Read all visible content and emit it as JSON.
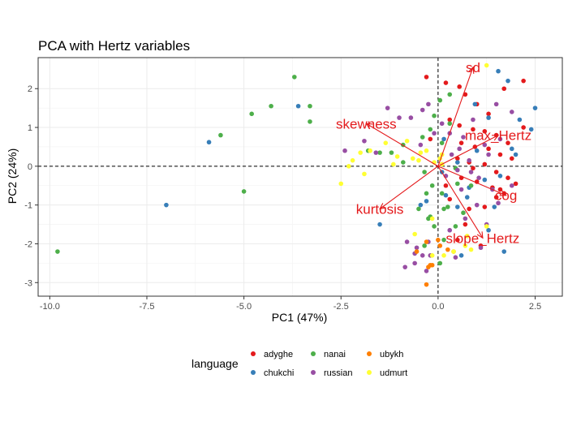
{
  "chart_data": {
    "type": "scatter",
    "title": "PCA with Hertz variables",
    "xlabel": "PC1 (47%)",
    "ylabel": "PC2 (24%)",
    "xlim": [
      -10.3,
      3.2
    ],
    "ylim": [
      -3.35,
      2.8
    ],
    "x_ticks": [
      -10.0,
      -7.5,
      -5.0,
      -2.5,
      0.0,
      2.5
    ],
    "x_tick_labels": [
      "-10.0",
      "-7.5",
      "-5.0",
      "-2.5",
      "0.0",
      "2.5"
    ],
    "y_ticks": [
      -3,
      -2,
      -1,
      0,
      1,
      2
    ],
    "y_tick_labels": [
      "-3",
      "-2",
      "-1",
      "0",
      "1",
      "2"
    ],
    "grid": true,
    "reference_lines": {
      "x": 0,
      "y": 0,
      "style": "dashed"
    },
    "legend": {
      "title": "language",
      "position": "bottom",
      "entries": [
        {
          "name": "adyghe",
          "color": "#e41a1c"
        },
        {
          "name": "chukchi",
          "color": "#377eb8"
        },
        {
          "name": "nanai",
          "color": "#4daf4a"
        },
        {
          "name": "russian",
          "color": "#984ea3"
        },
        {
          "name": "ubykh",
          "color": "#ff7f00"
        },
        {
          "name": "udmurt",
          "color": "#ffff33"
        }
      ]
    },
    "loadings": [
      {
        "name": "sd",
        "x": 0.9,
        "y": 2.55
      },
      {
        "name": "skewness",
        "x": -1.85,
        "y": 1.1
      },
      {
        "name": "max_Hertz",
        "x": 1.55,
        "y": 0.8
      },
      {
        "name": "kurtosis",
        "x": -1.5,
        "y": -1.1
      },
      {
        "name": "cog",
        "x": 1.75,
        "y": -0.75
      },
      {
        "name": "slope_Hertz",
        "x": 1.15,
        "y": -1.85
      }
    ],
    "arrow_color": "#e41a1c",
    "series": [
      {
        "name": "adyghe",
        "color": "#e41a1c",
        "points": [
          [
            -0.3,
            2.3
          ],
          [
            0.2,
            2.15
          ],
          [
            0.55,
            2.05
          ],
          [
            0.7,
            1.85
          ],
          [
            1.0,
            1.6
          ],
          [
            1.3,
            1.35
          ],
          [
            0.3,
            1.2
          ],
          [
            0.55,
            1.05
          ],
          [
            0.9,
            0.95
          ],
          [
            1.2,
            0.9
          ],
          [
            1.5,
            0.8
          ],
          [
            1.8,
            0.6
          ],
          [
            0.6,
            0.6
          ],
          [
            0.95,
            0.5
          ],
          [
            1.3,
            0.45
          ],
          [
            1.6,
            0.3
          ],
          [
            1.9,
            0.2
          ],
          [
            0.5,
            0.2
          ],
          [
            0.8,
            0.1
          ],
          [
            1.2,
            0.05
          ],
          [
            1.5,
            -0.15
          ],
          [
            1.8,
            -0.3
          ],
          [
            2.0,
            -0.45
          ],
          [
            0.6,
            -0.3
          ],
          [
            1.0,
            -0.4
          ],
          [
            1.4,
            -0.55
          ],
          [
            1.7,
            -0.7
          ],
          [
            2.2,
            1.0
          ],
          [
            2.2,
            2.2
          ],
          [
            1.7,
            2.0
          ],
          [
            0.3,
            -0.85
          ],
          [
            0.8,
            -1.1
          ],
          [
            1.2,
            -1.05
          ],
          [
            1.5,
            -0.8
          ],
          [
            0.2,
            -0.5
          ],
          [
            -0.2,
            0.7
          ],
          [
            1.6,
            -0.6
          ],
          [
            0.7,
            -1.5
          ],
          [
            1.1,
            -2.05
          ],
          [
            0.5,
            -1.9
          ],
          [
            0.9,
            -0.05
          ],
          [
            0.1,
            0.05
          ]
        ]
      },
      {
        "name": "chukchi",
        "color": "#377eb8",
        "points": [
          [
            -7.0,
            -1.0
          ],
          [
            -5.9,
            0.62
          ],
          [
            -3.6,
            1.55
          ],
          [
            -1.5,
            -1.5
          ],
          [
            -0.3,
            -0.9
          ],
          [
            0.1,
            -0.15
          ],
          [
            0.5,
            0.1
          ],
          [
            1.0,
            0.4
          ],
          [
            1.3,
            1.25
          ],
          [
            1.8,
            2.2
          ],
          [
            2.1,
            1.2
          ],
          [
            2.4,
            0.95
          ],
          [
            2.5,
            1.5
          ],
          [
            1.9,
            0.45
          ],
          [
            1.6,
            -0.25
          ],
          [
            1.2,
            -0.35
          ],
          [
            0.8,
            -0.55
          ],
          [
            0.5,
            -1.05
          ],
          [
            1.3,
            -1.65
          ],
          [
            1.7,
            -2.2
          ],
          [
            0.6,
            -2.3
          ],
          [
            1.45,
            -1.05
          ],
          [
            0.95,
            1.6
          ],
          [
            1.55,
            2.45
          ],
          [
            -0.45,
            -1.0
          ],
          [
            0.15,
            0.7
          ],
          [
            0.75,
            -0.8
          ],
          [
            2.0,
            0.3
          ],
          [
            0.2,
            -0.75
          ]
        ]
      },
      {
        "name": "nanai",
        "color": "#4daf4a",
        "points": [
          [
            -9.8,
            -2.2
          ],
          [
            -5.6,
            0.8
          ],
          [
            -5.0,
            -0.65
          ],
          [
            -4.8,
            1.35
          ],
          [
            -4.3,
            1.55
          ],
          [
            -3.7,
            2.3
          ],
          [
            -3.3,
            1.55
          ],
          [
            -3.3,
            1.15
          ],
          [
            -1.8,
            0.4
          ],
          [
            -1.5,
            0.35
          ],
          [
            -1.2,
            0.35
          ],
          [
            -0.9,
            0.55
          ],
          [
            -0.4,
            0.75
          ],
          [
            -0.2,
            0.95
          ],
          [
            0.1,
            0.6
          ],
          [
            -0.35,
            -0.15
          ],
          [
            -0.15,
            -0.5
          ],
          [
            0.1,
            -0.7
          ],
          [
            -0.3,
            -0.7
          ],
          [
            0.25,
            -1.05
          ],
          [
            0.5,
            -0.45
          ],
          [
            -0.1,
            -1.55
          ],
          [
            0.15,
            -1.9
          ],
          [
            -0.35,
            -2.05
          ],
          [
            0.05,
            -2.5
          ],
          [
            0.15,
            -1.1
          ],
          [
            0.65,
            -1.2
          ],
          [
            0.05,
            1.7
          ],
          [
            0.3,
            1.1
          ],
          [
            -0.25,
            -1.35
          ],
          [
            0.45,
            -1.55
          ],
          [
            0.85,
            -0.5
          ],
          [
            -0.9,
            0.1
          ],
          [
            0.3,
            1.85
          ],
          [
            -0.1,
            1.3
          ],
          [
            -0.5,
            -1.1
          ],
          [
            -0.2,
            -1.3
          ],
          [
            0.45,
            -0.05
          ]
        ]
      },
      {
        "name": "russian",
        "color": "#984ea3",
        "points": [
          [
            -2.4,
            0.4
          ],
          [
            -1.9,
            0.65
          ],
          [
            -1.6,
            0.35
          ],
          [
            -1.3,
            1.5
          ],
          [
            -1.0,
            1.25
          ],
          [
            -0.7,
            1.25
          ],
          [
            -0.4,
            1.45
          ],
          [
            -0.1,
            0.85
          ],
          [
            0.3,
            0.85
          ],
          [
            0.55,
            0.45
          ],
          [
            0.8,
            0.15
          ],
          [
            1.05,
            -0.3
          ],
          [
            1.3,
            0.3
          ],
          [
            1.6,
            0.7
          ],
          [
            1.9,
            1.4
          ],
          [
            1.5,
            1.6
          ],
          [
            0.9,
            1.2
          ],
          [
            0.65,
            0.75
          ],
          [
            0.5,
            -0.1
          ],
          [
            0.6,
            -0.6
          ],
          [
            1.0,
            -1.0
          ],
          [
            0.7,
            -1.35
          ],
          [
            0.3,
            -1.65
          ],
          [
            -0.25,
            -1.95
          ],
          [
            -0.55,
            -2.1
          ],
          [
            -0.3,
            -2.7
          ],
          [
            -0.6,
            -2.25
          ],
          [
            -0.6,
            -2.5
          ],
          [
            -0.85,
            -2.6
          ],
          [
            -0.8,
            -1.95
          ],
          [
            -0.4,
            -2.3
          ],
          [
            0.45,
            -2.35
          ],
          [
            -0.2,
            -2.3
          ],
          [
            1.1,
            -2.1
          ],
          [
            1.25,
            -1.5
          ],
          [
            1.55,
            -0.95
          ],
          [
            1.9,
            -0.5
          ],
          [
            1.2,
            0.55
          ],
          [
            0.85,
            -0.15
          ],
          [
            0.35,
            0.3
          ],
          [
            0.1,
            1.1
          ],
          [
            -0.25,
            1.6
          ],
          [
            -0.45,
            0.55
          ],
          [
            0.2,
            -0.25
          ],
          [
            1.4,
            -0.6
          ]
        ]
      },
      {
        "name": "ubykh",
        "color": "#ff7f00",
        "points": [
          [
            -0.3,
            -3.05
          ],
          [
            -0.2,
            -2.55
          ],
          [
            -0.25,
            -2.6
          ],
          [
            -0.15,
            -2.55
          ],
          [
            -0.3,
            -1.95
          ],
          [
            0.05,
            -2.05
          ],
          [
            0.4,
            -2.2
          ],
          [
            0.25,
            -2.15
          ],
          [
            -0.55,
            -2.2
          ],
          [
            0.0,
            -1.9
          ]
        ]
      },
      {
        "name": "udmurt",
        "color": "#ffff33",
        "points": [
          [
            -2.5,
            -0.45
          ],
          [
            -2.3,
            0.0
          ],
          [
            -2.2,
            0.15
          ],
          [
            -2.0,
            0.35
          ],
          [
            -1.9,
            -0.2
          ],
          [
            -1.75,
            0.4
          ],
          [
            -1.35,
            0.6
          ],
          [
            -1.05,
            0.25
          ],
          [
            -0.8,
            0.65
          ],
          [
            -0.65,
            0.2
          ],
          [
            -0.45,
            0.35
          ],
          [
            -0.1,
            0.1
          ],
          [
            0.05,
            0.2
          ],
          [
            -0.3,
            0.4
          ],
          [
            1.25,
            2.6
          ],
          [
            1.25,
            -1.55
          ],
          [
            0.75,
            -1.8
          ],
          [
            0.4,
            -2.2
          ],
          [
            0.15,
            -2.3
          ],
          [
            -0.15,
            -2.3
          ],
          [
            0.85,
            -2.15
          ],
          [
            -0.6,
            -1.75
          ],
          [
            0.1,
            0.05
          ],
          [
            0.1,
            0.3
          ],
          [
            -1.15,
            0.05
          ],
          [
            0.7,
            -2.05
          ],
          [
            -0.15,
            -1.35
          ],
          [
            -0.5,
            0.15
          ]
        ]
      }
    ]
  }
}
